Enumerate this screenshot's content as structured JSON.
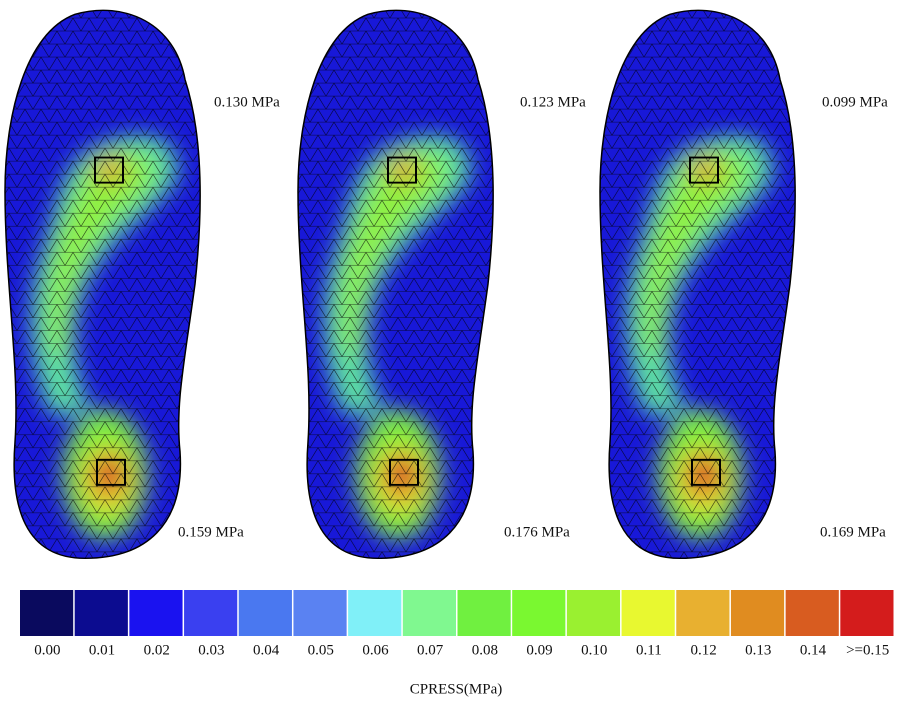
{
  "panels": [
    {
      "forefoot_label": "0.130 MPa",
      "heel_label": "0.159 MPa"
    },
    {
      "forefoot_label": "0.123 MPa",
      "heel_label": "0.176 MPa"
    },
    {
      "forefoot_label": "0.099 MPa",
      "heel_label": "0.169 MPa"
    }
  ],
  "legend": {
    "title": "CPRESS(MPa)",
    "labels": [
      "0.00",
      "0.01",
      "0.02",
      "0.03",
      "0.04",
      "0.05",
      "0.06",
      "0.07",
      "0.08",
      "0.09",
      "0.10",
      "0.11",
      "0.12",
      "0.13",
      "0.14",
      ">=0.15"
    ],
    "colors": [
      "#0a0a5e",
      "#0c0c90",
      "#1a12f0",
      "#3a40f0",
      "#4a78f0",
      "#5a82f2",
      "#80f0f8",
      "#80f890",
      "#70f040",
      "#7af830",
      "#9af030",
      "#e8f830",
      "#e8b030",
      "#e08c20",
      "#d85c20",
      "#d41c1c"
    ]
  }
}
